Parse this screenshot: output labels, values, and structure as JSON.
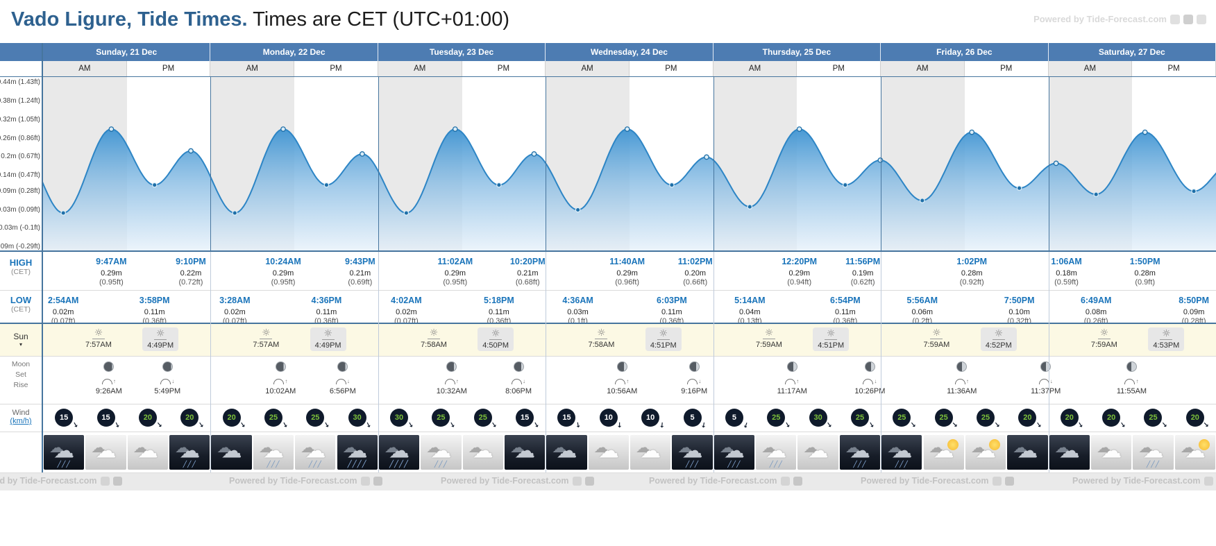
{
  "header": {
    "title_bold": "Vado Ligure, Tide Times.",
    "title_rest": " Times are CET (UTC+01:00)",
    "watermark": "Powered by Tide-Forecast.com"
  },
  "columns": {
    "am": "AM",
    "pm": "PM",
    "days": [
      "Sunday, 21 Dec",
      "Monday, 22 Dec",
      "Tuesday, 23 Dec",
      "Wednesday, 24 Dec",
      "Thursday, 25 Dec",
      "Friday, 26 Dec",
      "Saturday, 27 Dec"
    ]
  },
  "chart_data": {
    "type": "area",
    "title": "Tide height curve over 7 days",
    "ylabel": "Tide height (m / ft)",
    "ylim_m": [
      -0.09,
      0.44
    ],
    "x_span_days": 7,
    "y_ticks": [
      {
        "v": 0.44,
        "label": "0.44m (1.43ft)"
      },
      {
        "v": 0.38,
        "label": "0.38m (1.24ft)"
      },
      {
        "v": 0.32,
        "label": "0.32m (1.05ft)"
      },
      {
        "v": 0.26,
        "label": "0.26m (0.86ft)"
      },
      {
        "v": 0.2,
        "label": "0.2m (0.67ft)"
      },
      {
        "v": 0.14,
        "label": "0.14m (0.47ft)"
      },
      {
        "v": 0.09,
        "label": "0.09m (0.28ft)"
      },
      {
        "v": 0.03,
        "label": "0.03m (0.09ft)"
      },
      {
        "v": -0.03,
        "label": "-0.03m (-0.1ft)"
      },
      {
        "v": -0.09,
        "label": "-0.09m (-0.29ft)"
      }
    ],
    "extremes": [
      {
        "day": 0,
        "hour": 2.9,
        "time": "2:54AM",
        "type": "low",
        "height_m": 0.02,
        "m_label": "0.02m",
        "ft_label": "(0.07ft)"
      },
      {
        "day": 0,
        "hour": 9.78,
        "time": "9:47AM",
        "type": "high",
        "height_m": 0.29,
        "m_label": "0.29m",
        "ft_label": "(0.95ft)"
      },
      {
        "day": 0,
        "hour": 15.97,
        "time": "3:58PM",
        "type": "low",
        "height_m": 0.11,
        "m_label": "0.11m",
        "ft_label": "(0.36ft)"
      },
      {
        "day": 0,
        "hour": 21.17,
        "time": "9:10PM",
        "type": "high",
        "height_m": 0.22,
        "m_label": "0.22m",
        "ft_label": "(0.72ft)"
      },
      {
        "day": 1,
        "hour": 3.47,
        "time": "3:28AM",
        "type": "low",
        "height_m": 0.02,
        "m_label": "0.02m",
        "ft_label": "(0.07ft)"
      },
      {
        "day": 1,
        "hour": 10.4,
        "time": "10:24AM",
        "type": "high",
        "height_m": 0.29,
        "m_label": "0.29m",
        "ft_label": "(0.95ft)"
      },
      {
        "day": 1,
        "hour": 16.6,
        "time": "4:36PM",
        "type": "low",
        "height_m": 0.11,
        "m_label": "0.11m",
        "ft_label": "(0.36ft)"
      },
      {
        "day": 1,
        "hour": 21.72,
        "time": "9:43PM",
        "type": "high",
        "height_m": 0.21,
        "m_label": "0.21m",
        "ft_label": "(0.69ft)"
      },
      {
        "day": 2,
        "hour": 4.03,
        "time": "4:02AM",
        "type": "low",
        "height_m": 0.02,
        "m_label": "0.02m",
        "ft_label": "(0.07ft)"
      },
      {
        "day": 2,
        "hour": 11.03,
        "time": "11:02AM",
        "type": "high",
        "height_m": 0.29,
        "m_label": "0.29m",
        "ft_label": "(0.95ft)"
      },
      {
        "day": 2,
        "hour": 17.3,
        "time": "5:18PM",
        "type": "low",
        "height_m": 0.11,
        "m_label": "0.11m",
        "ft_label": "(0.36ft)"
      },
      {
        "day": 2,
        "hour": 22.33,
        "time": "10:20PM",
        "type": "high",
        "height_m": 0.21,
        "m_label": "0.21m",
        "ft_label": "(0.68ft)"
      },
      {
        "day": 3,
        "hour": 4.6,
        "time": "4:36AM",
        "type": "low",
        "height_m": 0.03,
        "m_label": "0.03m",
        "ft_label": "(0.1ft)"
      },
      {
        "day": 3,
        "hour": 11.67,
        "time": "11:40AM",
        "type": "high",
        "height_m": 0.29,
        "m_label": "0.29m",
        "ft_label": "(0.96ft)"
      },
      {
        "day": 3,
        "hour": 18.05,
        "time": "6:03PM",
        "type": "low",
        "height_m": 0.11,
        "m_label": "0.11m",
        "ft_label": "(0.36ft)"
      },
      {
        "day": 3,
        "hour": 23.03,
        "time": "11:02PM",
        "type": "high",
        "height_m": 0.2,
        "m_label": "0.20m",
        "ft_label": "(0.66ft)"
      },
      {
        "day": 4,
        "hour": 5.23,
        "time": "5:14AM",
        "type": "low",
        "height_m": 0.04,
        "m_label": "0.04m",
        "ft_label": "(0.13ft)"
      },
      {
        "day": 4,
        "hour": 12.33,
        "time": "12:20PM",
        "type": "high",
        "height_m": 0.29,
        "m_label": "0.29m",
        "ft_label": "(0.94ft)"
      },
      {
        "day": 4,
        "hour": 18.9,
        "time": "6:54PM",
        "type": "low",
        "height_m": 0.11,
        "m_label": "0.11m",
        "ft_label": "(0.36ft)"
      },
      {
        "day": 4,
        "hour": 23.93,
        "time": "11:56PM",
        "type": "high",
        "height_m": 0.19,
        "m_label": "0.19m",
        "ft_label": "(0.62ft)"
      },
      {
        "day": 5,
        "hour": 5.93,
        "time": "5:56AM",
        "type": "low",
        "height_m": 0.06,
        "m_label": "0.06m",
        "ft_label": "(0.2ft)"
      },
      {
        "day": 5,
        "hour": 13.03,
        "time": "1:02PM",
        "type": "high",
        "height_m": 0.28,
        "m_label": "0.28m",
        "ft_label": "(0.92ft)"
      },
      {
        "day": 5,
        "hour": 19.83,
        "time": "7:50PM",
        "type": "low",
        "height_m": 0.1,
        "m_label": "0.10m",
        "ft_label": "(0.32ft)"
      },
      {
        "day": 6,
        "hour": 1.1,
        "time": "1:06AM",
        "type": "high",
        "height_m": 0.18,
        "m_label": "0.18m",
        "ft_label": "(0.59ft)"
      },
      {
        "day": 6,
        "hour": 6.82,
        "time": "6:49AM",
        "type": "low",
        "height_m": 0.08,
        "m_label": "0.08m",
        "ft_label": "(0.26ft)"
      },
      {
        "day": 6,
        "hour": 13.83,
        "time": "1:50PM",
        "type": "high",
        "height_m": 0.28,
        "m_label": "0.28m",
        "ft_label": "(0.9ft)"
      },
      {
        "day": 6,
        "hour": 20.83,
        "time": "8:50PM",
        "type": "low",
        "height_m": 0.09,
        "m_label": "0.09m",
        "ft_label": "(0.28ft)"
      }
    ],
    "edge_points": [
      {
        "day": 0,
        "hour": -3.1,
        "height_m": 0.22
      },
      {
        "day": 6,
        "hour": 26.2,
        "height_m": 0.18
      }
    ],
    "colors": {
      "line": "#2d85c5",
      "fill_top": "#3f94d2",
      "fill_bottom": "#e7f1fa",
      "band_am": "#e9e9e9",
      "band_pm": "#ffffff",
      "day_header_bg": "#4d7cb2",
      "accent_blue": "#1a74ba"
    }
  },
  "tide_rows": {
    "high_label": "HIGH",
    "low_label": "LOW",
    "tz_label": "(CET)"
  },
  "sun": {
    "label": "Sun",
    "caret": "▾",
    "events": [
      {
        "day": 0,
        "hour": 7.95,
        "time": "7:57AM",
        "type": "rise"
      },
      {
        "day": 0,
        "hour": 16.82,
        "time": "4:49PM",
        "type": "set"
      },
      {
        "day": 1,
        "hour": 7.95,
        "time": "7:57AM",
        "type": "rise"
      },
      {
        "day": 1,
        "hour": 16.82,
        "time": "4:49PM",
        "type": "set"
      },
      {
        "day": 2,
        "hour": 7.97,
        "time": "7:58AM",
        "type": "rise"
      },
      {
        "day": 2,
        "hour": 16.83,
        "time": "4:50PM",
        "type": "set"
      },
      {
        "day": 3,
        "hour": 7.97,
        "time": "7:58AM",
        "type": "rise"
      },
      {
        "day": 3,
        "hour": 16.85,
        "time": "4:51PM",
        "type": "set"
      },
      {
        "day": 4,
        "hour": 7.98,
        "time": "7:59AM",
        "type": "rise"
      },
      {
        "day": 4,
        "hour": 16.85,
        "time": "4:51PM",
        "type": "set"
      },
      {
        "day": 5,
        "hour": 7.98,
        "time": "7:59AM",
        "type": "rise"
      },
      {
        "day": 5,
        "hour": 16.87,
        "time": "4:52PM",
        "type": "set"
      },
      {
        "day": 6,
        "hour": 7.98,
        "time": "7:59AM",
        "type": "rise"
      },
      {
        "day": 6,
        "hour": 16.88,
        "time": "4:53PM",
        "type": "set"
      }
    ]
  },
  "moon": {
    "label": "Moon",
    "set_label": "Set",
    "rise_label": "Rise",
    "events": [
      {
        "day": 0,
        "hour": 9.43,
        "time": "9:26AM",
        "type": "rise",
        "dark_pct": 88
      },
      {
        "day": 0,
        "hour": 17.82,
        "time": "5:49PM",
        "type": "set",
        "dark_pct": 88
      },
      {
        "day": 1,
        "hour": 10.03,
        "time": "10:02AM",
        "type": "rise",
        "dark_pct": 82
      },
      {
        "day": 1,
        "hour": 18.93,
        "time": "6:56PM",
        "type": "set",
        "dark_pct": 82
      },
      {
        "day": 2,
        "hour": 10.53,
        "time": "10:32AM",
        "type": "rise",
        "dark_pct": 76
      },
      {
        "day": 2,
        "hour": 20.1,
        "time": "8:06PM",
        "type": "set",
        "dark_pct": 76
      },
      {
        "day": 3,
        "hour": 10.93,
        "time": "10:56AM",
        "type": "rise",
        "dark_pct": 69
      },
      {
        "day": 3,
        "hour": 21.27,
        "time": "9:16PM",
        "type": "set",
        "dark_pct": 69
      },
      {
        "day": 4,
        "hour": 11.28,
        "time": "11:17AM",
        "type": "rise",
        "dark_pct": 62
      },
      {
        "day": 4,
        "hour": 22.43,
        "time": "10:26PM",
        "type": "set",
        "dark_pct": 62
      },
      {
        "day": 5,
        "hour": 11.6,
        "time": "11:36AM",
        "type": "rise",
        "dark_pct": 55
      },
      {
        "day": 5,
        "hour": 23.62,
        "time": "11:37PM",
        "type": "set",
        "dark_pct": 55
      },
      {
        "day": 6,
        "hour": 11.92,
        "time": "11:55AM",
        "type": "rise",
        "dark_pct": 48
      }
    ]
  },
  "wind": {
    "label": "Wind",
    "unit": "(km/h)",
    "badges": [
      {
        "speed": 15,
        "dir": 60
      },
      {
        "speed": 15,
        "dir": 65
      },
      {
        "speed": 20,
        "dir": 50
      },
      {
        "speed": 20,
        "dir": 55
      },
      {
        "speed": 20,
        "dir": 55
      },
      {
        "speed": 25,
        "dir": 60
      },
      {
        "speed": 25,
        "dir": 60
      },
      {
        "speed": 30,
        "dir": 65
      },
      {
        "speed": 30,
        "dir": 60
      },
      {
        "speed": 25,
        "dir": 60
      },
      {
        "speed": 25,
        "dir": 55
      },
      {
        "speed": 15,
        "dir": 60
      },
      {
        "speed": 15,
        "dir": 80
      },
      {
        "speed": 10,
        "dir": 90
      },
      {
        "speed": 10,
        "dir": 95
      },
      {
        "speed": 5,
        "dir": 100
      },
      {
        "speed": 5,
        "dir": 110
      },
      {
        "speed": 25,
        "dir": 60
      },
      {
        "speed": 30,
        "dir": 55
      },
      {
        "speed": 25,
        "dir": 60
      },
      {
        "speed": 25,
        "dir": 50
      },
      {
        "speed": 25,
        "dir": 45
      },
      {
        "speed": 25,
        "dir": 50
      },
      {
        "speed": 20,
        "dir": 55
      },
      {
        "speed": 20,
        "dir": 60
      },
      {
        "speed": 20,
        "dir": 55
      },
      {
        "speed": 25,
        "dir": 50
      },
      {
        "speed": 20,
        "dir": 45
      }
    ]
  },
  "weather": {
    "cells": [
      {
        "bg": "night",
        "icon": "rain"
      },
      {
        "bg": "day",
        "icon": "cloud"
      },
      {
        "bg": "day",
        "icon": "cloud"
      },
      {
        "bg": "night",
        "icon": "rain"
      },
      {
        "bg": "night",
        "icon": "cloud"
      },
      {
        "bg": "day",
        "icon": "rain"
      },
      {
        "bg": "day",
        "icon": "rain"
      },
      {
        "bg": "night",
        "icon": "heavy-rain"
      },
      {
        "bg": "night",
        "icon": "heavy-rain"
      },
      {
        "bg": "day",
        "icon": "rain"
      },
      {
        "bg": "day",
        "icon": "cloud"
      },
      {
        "bg": "night",
        "icon": "cloud"
      },
      {
        "bg": "night",
        "icon": "cloud"
      },
      {
        "bg": "day",
        "icon": "cloud"
      },
      {
        "bg": "day",
        "icon": "cloud"
      },
      {
        "bg": "night",
        "icon": "rain"
      },
      {
        "bg": "night",
        "icon": "rain"
      },
      {
        "bg": "day",
        "icon": "rain"
      },
      {
        "bg": "day",
        "icon": "cloud"
      },
      {
        "bg": "night",
        "icon": "rain"
      },
      {
        "bg": "night",
        "icon": "rain"
      },
      {
        "bg": "day",
        "icon": "sun-cloud"
      },
      {
        "bg": "day",
        "icon": "sun-cloud"
      },
      {
        "bg": "night",
        "icon": "cloud"
      },
      {
        "bg": "night",
        "icon": "cloud"
      },
      {
        "bg": "day",
        "icon": "cloud"
      },
      {
        "bg": "day",
        "icon": "rain"
      },
      {
        "bg": "day",
        "icon": "sun-cloud"
      }
    ]
  },
  "footer": {
    "watermark": "Powered by Tide-Forecast.com",
    "positions": [
      -45,
      330,
      635,
      935,
      1240,
      1545
    ]
  }
}
